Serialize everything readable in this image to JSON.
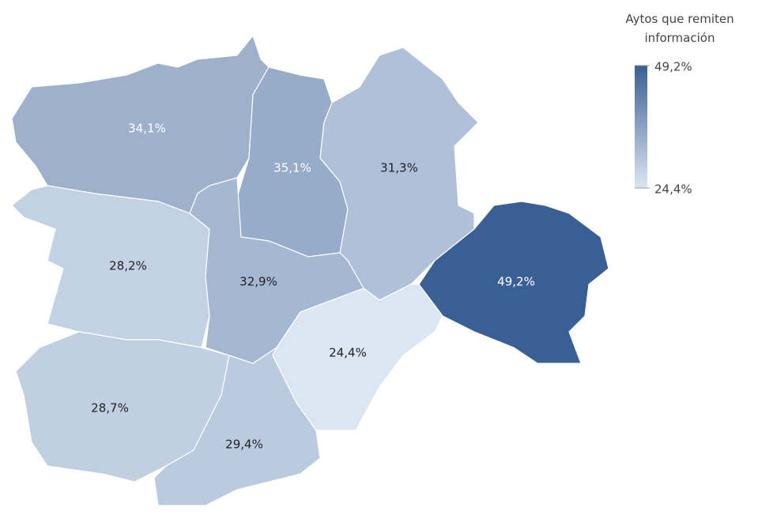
{
  "chart_data": {
    "type": "choropleth",
    "title": "Aytos que remiten información",
    "values": [
      34.1,
      35.1,
      31.3,
      49.2,
      28.2,
      32.9,
      24.4,
      28.7,
      29.4
    ],
    "value_labels": [
      "34,1%",
      "35,1%",
      "31,3%",
      "49,2%",
      "28,2%",
      "32,9%",
      "24,4%",
      "28,7%",
      "29,4%"
    ],
    "color_range": [
      "#dce6f2",
      "#3a5f94"
    ],
    "scale": [
      {
        "value": 24.4,
        "label": "24,4%"
      },
      {
        "value": 49.2,
        "label": "49,2%"
      }
    ]
  }
}
